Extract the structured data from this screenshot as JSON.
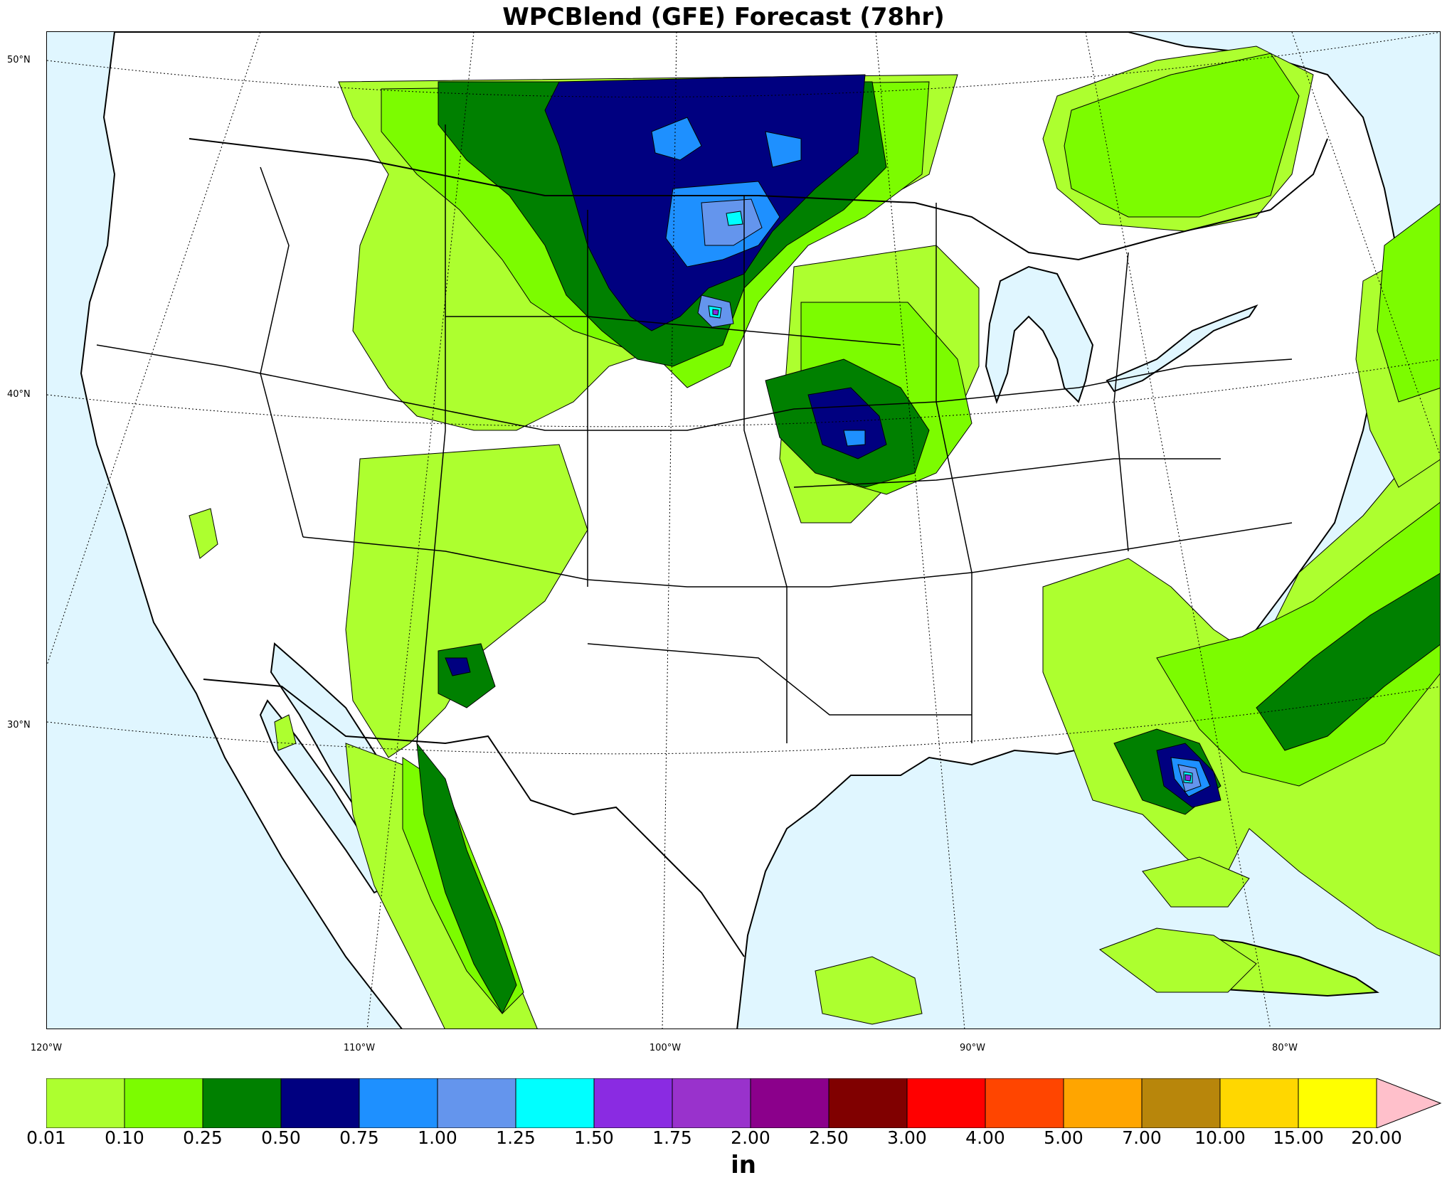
{
  "title": "WPCBlend (GFE) Forecast (78hr)",
  "lat_labels": [
    "50°N",
    "40°N",
    "30°N"
  ],
  "lon_labels": [
    "120°W",
    "110°W",
    "100°W",
    "90°W",
    "80°W"
  ],
  "colorbar": {
    "units": "in",
    "ticks": [
      "0.01",
      "0.10",
      "0.25",
      "0.50",
      "0.75",
      "1.00",
      "1.25",
      "1.50",
      "1.75",
      "2.00",
      "2.50",
      "3.00",
      "4.00",
      "5.00",
      "7.00",
      "10.00",
      "15.00",
      "20.00"
    ],
    "colors": [
      "#adff2f",
      "#7cfc00",
      "#008000",
      "#000080",
      "#1e90ff",
      "#6495ed",
      "#00ffff",
      "#8a2be2",
      "#9932cc",
      "#8b008b",
      "#800000",
      "#ff0000",
      "#ff4500",
      "#ffa500",
      "#b8860b",
      "#ffd700",
      "#ffff00"
    ],
    "extend_color": "#ffc0cb"
  },
  "colors": {
    "water": "#e0f6ff",
    "land": "#ffffff"
  }
}
